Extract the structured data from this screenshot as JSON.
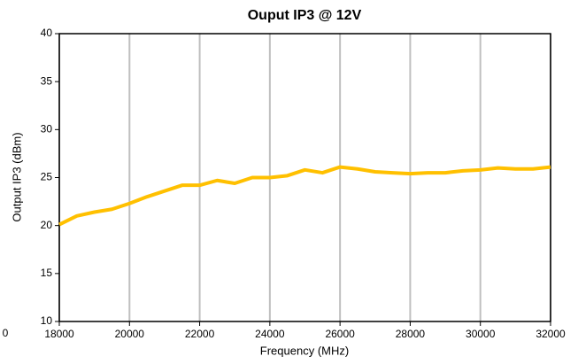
{
  "chart_data": {
    "type": "line",
    "title": "Ouput IP3 @ 12V",
    "x_label": "Frequency (MHz)",
    "y_label": "Output IP3 (dBm)",
    "annotation": "0",
    "x": [
      18000,
      18500,
      19000,
      19500,
      20000,
      20500,
      21000,
      21500,
      22000,
      22500,
      23000,
      23500,
      24000,
      24500,
      25000,
      25500,
      26000,
      26500,
      27000,
      27500,
      28000,
      28500,
      29000,
      29500,
      30000,
      30500,
      31000,
      31500,
      32000
    ],
    "series": [
      {
        "name": "Output IP3",
        "color": "#ffc000",
        "values": [
          20.1,
          21.0,
          21.4,
          21.7,
          22.3,
          23.0,
          23.6,
          24.2,
          24.2,
          24.7,
          24.4,
          25.0,
          25.0,
          25.2,
          25.8,
          25.5,
          26.1,
          25.9,
          25.6,
          25.5,
          25.4,
          25.5,
          25.5,
          25.7,
          25.8,
          26.0,
          25.9,
          25.9,
          26.1
        ]
      }
    ],
    "xlim": [
      18000,
      32000
    ],
    "xticks": [
      18000,
      20000,
      22000,
      24000,
      26000,
      28000,
      30000,
      32000
    ],
    "ylim": [
      10,
      40
    ],
    "yticks": [
      10,
      15,
      20,
      25,
      30,
      35,
      40
    ],
    "grid": "x"
  }
}
